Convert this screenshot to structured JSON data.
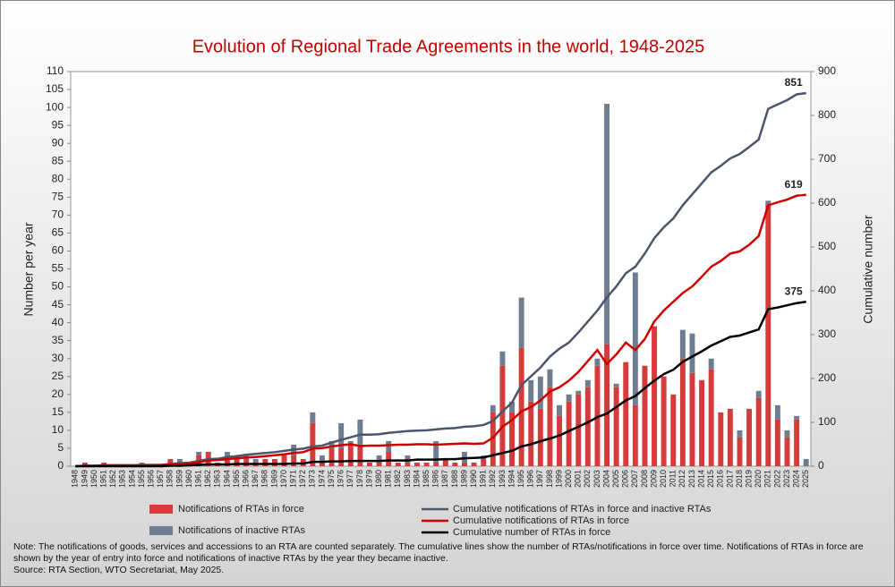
{
  "chart_data": {
    "type": "bar",
    "title": "Evolution of Regional Trade Agreements in the world, 1948-2025",
    "ylabel": "Number per year",
    "y2label": "Cumulative number",
    "categories": [
      "1948",
      "1949",
      "1950",
      "1951",
      "1952",
      "1953",
      "1954",
      "1955",
      "1956",
      "1957",
      "1958",
      "1959",
      "1960",
      "1961",
      "1962",
      "1963",
      "1964",
      "1965",
      "1966",
      "1967",
      "1968",
      "1969",
      "1970",
      "1971",
      "1972",
      "1973",
      "1974",
      "1975",
      "1976",
      "1977",
      "1978",
      "1979",
      "1980",
      "1981",
      "1982",
      "1983",
      "1984",
      "1985",
      "1986",
      "1987",
      "1988",
      "1989",
      "1990",
      "1991",
      "1992",
      "1993",
      "1994",
      "1995",
      "1996",
      "1997",
      "1998",
      "1999",
      "2000",
      "2001",
      "2002",
      "2003",
      "2004",
      "2005",
      "2006",
      "2007",
      "2008",
      "2009",
      "2010",
      "2011",
      "2012",
      "2013",
      "2014",
      "2015",
      "2016",
      "2017",
      "2018",
      "2019",
      "2020",
      "2021",
      "2022",
      "2023",
      "2024",
      "2025"
    ],
    "stacked": true,
    "series": [
      {
        "name": "Notifications of RTAs in force",
        "color": "#d43b3b",
        "values": [
          0,
          1,
          0,
          1,
          0,
          0,
          0,
          0,
          0,
          0,
          2,
          1,
          1,
          3,
          4,
          1,
          2,
          2,
          2,
          1,
          2,
          2,
          3,
          3,
          2,
          12,
          1,
          5,
          5,
          6,
          6,
          1,
          1,
          4,
          1,
          1,
          1,
          1,
          1,
          2,
          1,
          1,
          1,
          2,
          15,
          28,
          15,
          33,
          18,
          16,
          22,
          14,
          18,
          20,
          22,
          28,
          34,
          22,
          29,
          17,
          28,
          39,
          25,
          20,
          30,
          26,
          24,
          27,
          15,
          16,
          8,
          16,
          19,
          73,
          13,
          8,
          13,
          0
        ]
      },
      {
        "name": "Notifications of inactive RTAs",
        "color": "#6f7d90",
        "values": [
          0,
          0,
          0,
          0,
          0,
          0,
          0,
          1,
          0,
          0,
          0,
          1,
          0,
          1,
          0,
          0,
          2,
          0,
          1,
          1,
          0,
          0,
          0,
          3,
          0,
          3,
          2,
          2,
          7,
          1,
          7,
          0,
          2,
          3,
          0,
          2,
          0,
          0,
          6,
          0,
          0,
          3,
          0,
          1,
          2,
          4,
          3,
          14,
          6,
          9,
          5,
          3,
          2,
          1,
          2,
          2,
          67,
          1,
          0,
          37,
          0,
          0,
          0,
          0,
          8,
          11,
          0,
          3,
          0,
          0,
          2,
          0,
          2,
          1,
          4,
          2,
          1,
          2
        ]
      },
      {
        "name": "Cumulative notifications of RTAs in force and inactive RTAs",
        "color": "#4a566c",
        "axis": "y2",
        "values": [
          0,
          1,
          1,
          2,
          2,
          2,
          2,
          3,
          3,
          3,
          5,
          7,
          8,
          12,
          16,
          17,
          21,
          23,
          26,
          28,
          30,
          32,
          35,
          38,
          40,
          45,
          47,
          54,
          60,
          66,
          72,
          72,
          73,
          76,
          78,
          80,
          81,
          82,
          84,
          86,
          87,
          90,
          91,
          94,
          103,
          125,
          145,
          185,
          205,
          225,
          250,
          268,
          282,
          305,
          330,
          355,
          385,
          410,
          440,
          455,
          485,
          520,
          545,
          565,
          595,
          620,
          645,
          670,
          685,
          702,
          712,
          728,
          745,
          815,
          825,
          835,
          848,
          851
        ]
      },
      {
        "name": "Cumulative notifications of RTAs in force",
        "color": "#cc0000",
        "axis": "y2",
        "values": [
          0,
          1,
          1,
          2,
          2,
          2,
          2,
          2,
          2,
          2,
          4,
          5,
          6,
          9,
          13,
          14,
          16,
          18,
          20,
          21,
          23,
          25,
          27,
          30,
          32,
          40,
          41,
          45,
          48,
          50,
          46,
          47,
          47,
          48,
          49,
          49,
          50,
          50,
          49,
          50,
          51,
          52,
          51,
          52,
          65,
          90,
          105,
          125,
          135,
          150,
          170,
          180,
          195,
          215,
          240,
          265,
          233,
          255,
          282,
          265,
          290,
          330,
          355,
          375,
          395,
          410,
          432,
          455,
          468,
          485,
          490,
          505,
          525,
          595,
          602,
          608,
          617,
          619
        ]
      },
      {
        "name": "Cumulative number of RTAs in force",
        "color": "#000000",
        "axis": "y2",
        "values": [
          0,
          0,
          0,
          0,
          0,
          0,
          0,
          0,
          0,
          0,
          1,
          1,
          2,
          3,
          4,
          4,
          4,
          5,
          5,
          5,
          5,
          5,
          5,
          6,
          6,
          10,
          10,
          11,
          11,
          12,
          12,
          12,
          12,
          13,
          13,
          13,
          15,
          15,
          15,
          16,
          16,
          18,
          19,
          20,
          25,
          30,
          35,
          45,
          50,
          57,
          63,
          70,
          80,
          90,
          100,
          112,
          120,
          135,
          150,
          160,
          178,
          195,
          210,
          220,
          238,
          250,
          262,
          275,
          285,
          295,
          298,
          305,
          312,
          358,
          362,
          367,
          372,
          375
        ]
      }
    ],
    "ylim": [
      0,
      110
    ],
    "yticks": [
      0,
      5,
      10,
      15,
      20,
      25,
      30,
      35,
      40,
      45,
      50,
      55,
      60,
      65,
      70,
      75,
      80,
      85,
      90,
      95,
      100,
      105,
      110
    ],
    "y2lim": [
      0,
      900
    ],
    "y2ticks": [
      0,
      100,
      200,
      300,
      400,
      500,
      600,
      700,
      800,
      900
    ],
    "note": "Note: The notifications of goods, services and accessions to an RTA are counted separately. The cumulative lines show the number of RTAs/notifications in force over time. Notifications of RTAs in force are shown by the year of entry into force and notifications of inactive RTAs by the year they became inactive.",
    "source": "Source: RTA Section, WTO Secretariat, May 2025."
  }
}
